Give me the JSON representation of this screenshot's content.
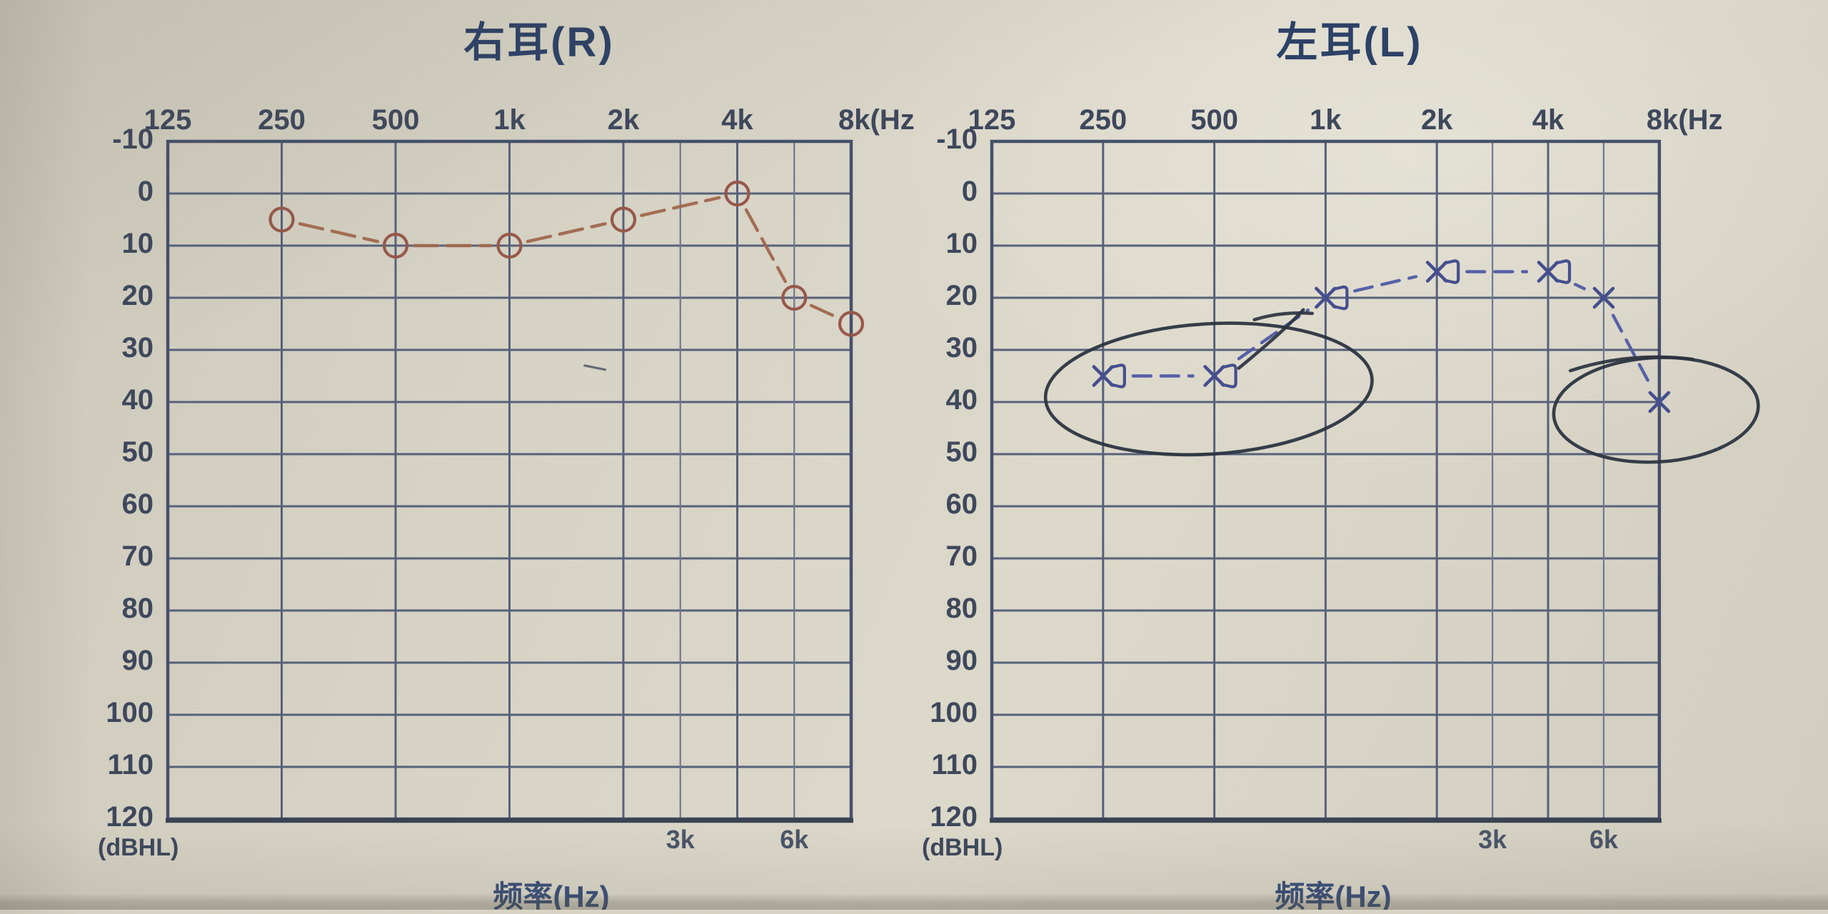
{
  "sheet": {
    "paper_color": "#d8d4c6",
    "grid_color": "#57617a",
    "grid_minor_color": "#6e7890",
    "border_color": "#46506a",
    "border_dark_color": "#3a4352",
    "pen_color": "#2b3340"
  },
  "chart_data": [
    {
      "type": "line",
      "ear": "right",
      "title": "右耳(R)",
      "xlabel": "频率(Hz)",
      "y_unit": "(dBHL)",
      "x_tick_labels": [
        "125",
        "250",
        "500",
        "1k",
        "2k",
        "4k",
        "8k(Hz"
      ],
      "x_tick_freqs": [
        125,
        250,
        500,
        1000,
        2000,
        4000,
        8000
      ],
      "bottom_ticks": [
        {
          "label": "3k",
          "freq": 3000
        },
        {
          "label": "6k",
          "freq": 6000
        }
      ],
      "y_ticks": [
        -10,
        0,
        10,
        20,
        30,
        40,
        50,
        60,
        70,
        80,
        90,
        100,
        110,
        120
      ],
      "ylim": [
        -10,
        120
      ],
      "grid": true,
      "series": [
        {
          "name": "air-conduction-right-ear",
          "symbol": "circle",
          "color": "#96584a",
          "line_color": "#a2684f",
          "points": [
            {
              "freq": 250,
              "db": 5
            },
            {
              "freq": 500,
              "db": 10
            },
            {
              "freq": 1000,
              "db": 10
            },
            {
              "freq": 2000,
              "db": 5
            },
            {
              "freq": 4000,
              "db": 0
            },
            {
              "freq": 6000,
              "db": 20
            },
            {
              "freq": 8000,
              "db": 25
            }
          ]
        }
      ],
      "annotations": [
        {
          "shape": "stroke",
          "points": [
            [
              3.66,
              33.0
            ],
            [
              3.84,
              33.8
            ]
          ],
          "width": 3.2,
          "color": "#5c6270"
        }
      ]
    },
    {
      "type": "line",
      "ear": "left",
      "title": "左耳(L)",
      "xlabel": "频率(Hz)",
      "y_unit": "(dBHL)",
      "x_tick_labels": [
        "125",
        "250",
        "500",
        "1k",
        "2k",
        "4k",
        "8k(Hz"
      ],
      "x_tick_freqs": [
        125,
        250,
        500,
        1000,
        2000,
        4000,
        8000
      ],
      "bottom_ticks": [
        {
          "label": "3k",
          "freq": 3000
        },
        {
          "label": "6k",
          "freq": 6000
        }
      ],
      "y_ticks": [
        -10,
        0,
        10,
        20,
        30,
        40,
        50,
        60,
        70,
        80,
        90,
        100,
        110,
        120
      ],
      "ylim": [
        -10,
        120
      ],
      "grid": true,
      "series": [
        {
          "name": "air-conduction-left-ear",
          "symbol": "x",
          "bracket_freqs": [
            250,
            500,
            1000,
            2000,
            4000
          ],
          "color": "#454e8e",
          "line_color": "#505aa6",
          "points": [
            {
              "freq": 250,
              "db": 35
            },
            {
              "freq": 500,
              "db": 35
            },
            {
              "freq": 1000,
              "db": 20
            },
            {
              "freq": 2000,
              "db": 15
            },
            {
              "freq": 4000,
              "db": 15
            },
            {
              "freq": 6000,
              "db": 20
            },
            {
              "freq": 8000,
              "db": 40
            }
          ]
        }
      ],
      "annotations": [
        {
          "shape": "ellipse",
          "cx_oct": 1.95,
          "cy_db": 37.5,
          "rx_oct": 1.47,
          "ry_db": 12.5,
          "rotate": -3.5,
          "color": "#2b3340"
        },
        {
          "shape": "ellipse",
          "cx_oct": 5.97,
          "cy_db": 41.5,
          "rx_oct": 0.92,
          "ry_db": 10,
          "rotate": -3,
          "color": "#2b3340"
        },
        {
          "shape": "stroke",
          "points": [
            [
              5.2,
              34.0
            ],
            [
              5.72,
              30.3
            ],
            [
              6.3,
              31.8
            ]
          ],
          "color": "#2b3340"
        },
        {
          "shape": "stroke",
          "points": [
            [
              2.22,
              33.5
            ],
            [
              2.62,
              26.5
            ],
            [
              2.8,
              22.3
            ]
          ],
          "color": "#2b3340"
        },
        {
          "shape": "stroke",
          "points": [
            [
              2.36,
              24.2
            ],
            [
              2.6,
              22.6
            ],
            [
              2.88,
              23.0
            ]
          ],
          "color": "#2b3340"
        }
      ]
    }
  ]
}
